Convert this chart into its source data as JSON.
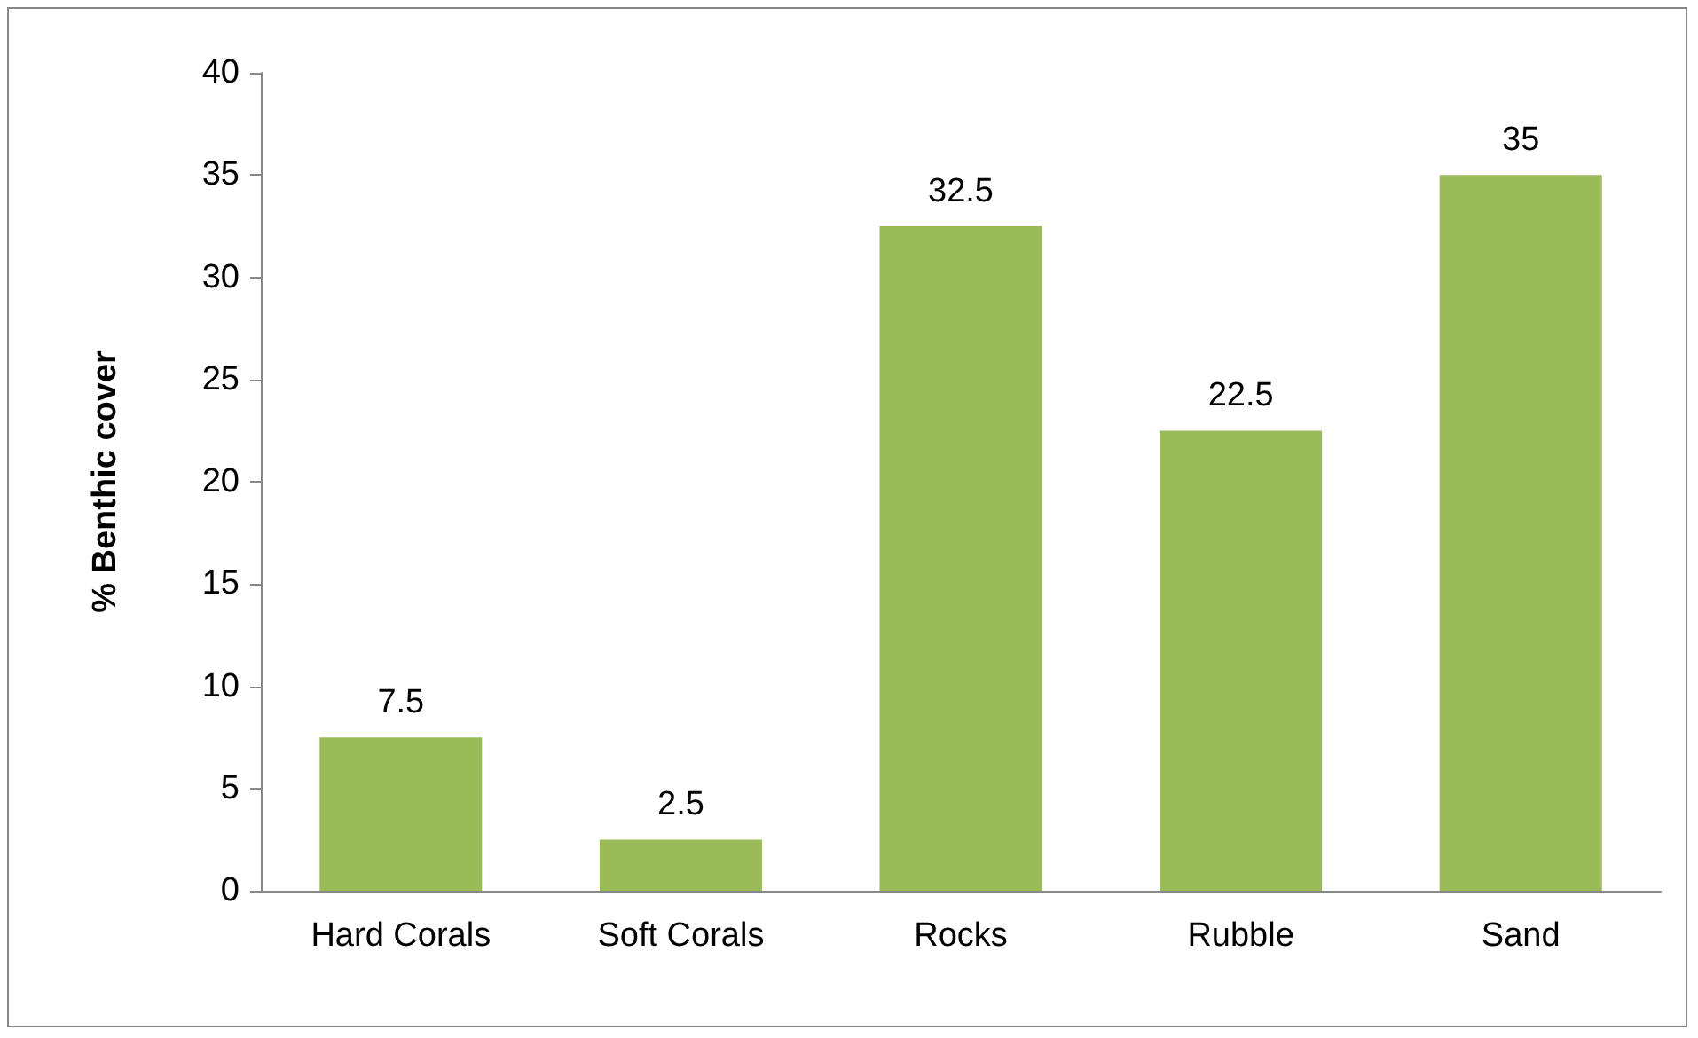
{
  "chart_data": {
    "type": "bar",
    "ylabel": "% Benthic cover",
    "categories": [
      "Hard Corals",
      "Soft Corals",
      "Rocks",
      "Rubble",
      "Sand"
    ],
    "values": [
      7.5,
      2.5,
      32.5,
      22.5,
      35
    ],
    "color": "#9bbb59",
    "ylim": [
      0,
      40
    ],
    "yticks": [
      0,
      5,
      10,
      15,
      20,
      25,
      30,
      35,
      40
    ],
    "grid": false,
    "data_labels": true
  }
}
